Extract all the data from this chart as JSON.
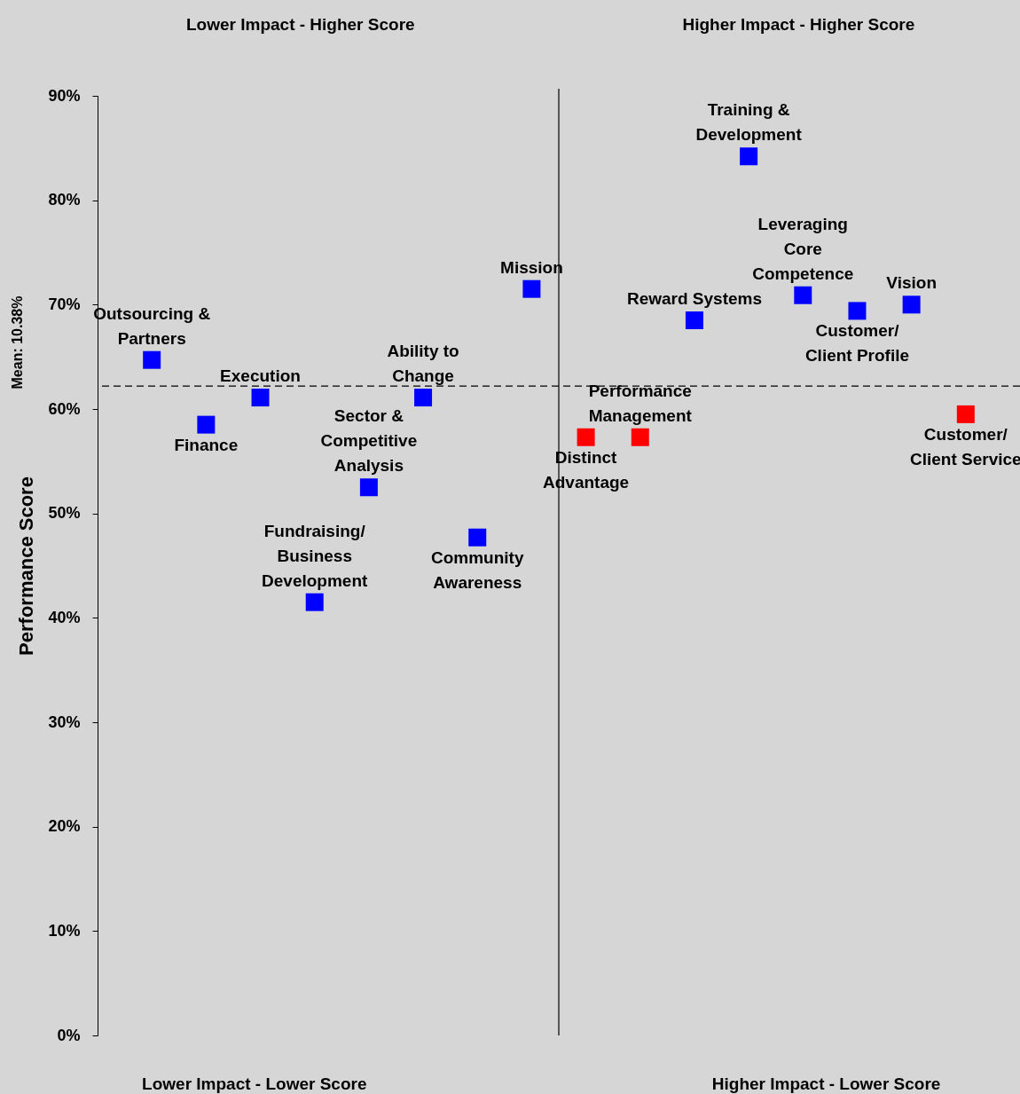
{
  "chart_data": {
    "type": "scatter",
    "categories": [
      null,
      null,
      null,
      null,
      null,
      null,
      null,
      null,
      null,
      null,
      null,
      null,
      null,
      null,
      null,
      null
    ],
    "values": [
      64.7,
      58.5,
      61.1,
      41.5,
      52.5,
      61.1,
      47.7,
      71.5,
      57.3,
      57.3,
      68.5,
      84.2,
      70.9,
      69.4,
      70.0,
      59.5
    ],
    "colors": [
      "#0000ff",
      "#0000ff",
      "#0000ff",
      "#0000ff",
      "#0000ff",
      "#0000ff",
      "#0000ff",
      "#0000ff",
      "#ff0000",
      "#ff0000",
      "#0000ff",
      "#0000ff",
      "#0000ff",
      "#0000ff",
      "#0000ff",
      "#ff0000"
    ],
    "ylim": [
      0,
      90
    ],
    "yticks": [
      {
        "value": 0,
        "label": "0%"
      },
      {
        "value": 10,
        "label": "10%"
      },
      {
        "value": 20,
        "label": "20%"
      },
      {
        "value": 30,
        "label": "30%"
      },
      {
        "value": 40,
        "label": "40%"
      },
      {
        "value": 50,
        "label": "50%"
      },
      {
        "value": 60,
        "label": "60%"
      },
      {
        "value": 70,
        "label": "70%"
      },
      {
        "value": 80,
        "label": "80%"
      },
      {
        "value": 90,
        "label": "90%"
      }
    ],
    "ylabel": "Performance Score",
    "tick_labels": "y",
    "marker": "square",
    "ref_lines": [
      {
        "axis": "y",
        "value": 62.2,
        "line_style": "dashed"
      },
      {
        "axis": "x",
        "line_style": "solid"
      }
    ],
    "annotations": [
      "Lower Impact - Higher Score",
      "Higher Impact - Higher Score",
      "Lower Impact - Lower Score",
      "Higher Impact - Lower Score",
      "Mean: 10.38%",
      {
        "text": "Outsourcing & Partners",
        "y": 64.7
      },
      {
        "text": "Finance",
        "y": 58.5
      },
      {
        "text": "Execution",
        "y": 61.1
      },
      {
        "text": "Fundraising/ Business Development",
        "y": 41.5
      },
      {
        "text": "Sector & Competitive Analysis",
        "y": 52.5
      },
      {
        "text": "Ability to Change",
        "y": 61.1
      },
      {
        "text": "Community Awareness",
        "y": 47.7
      },
      {
        "text": "Mission",
        "y": 71.5
      },
      {
        "text": "Distinct Advantage",
        "y": 57.3
      },
      {
        "text": "Performance Management",
        "y": 57.3
      },
      {
        "text": "Reward Systems",
        "y": 68.5
      },
      {
        "text": "Training & Development",
        "y": 84.2
      },
      {
        "text": "Leveraging Core Competence",
        "y": 70.9
      },
      {
        "text": "Customer/ Client Profile",
        "y": 69.4
      },
      {
        "text": "Vision",
        "y": 70.0
      },
      {
        "text": "Customer/ Client Service",
        "y": 59.5
      }
    ]
  }
}
